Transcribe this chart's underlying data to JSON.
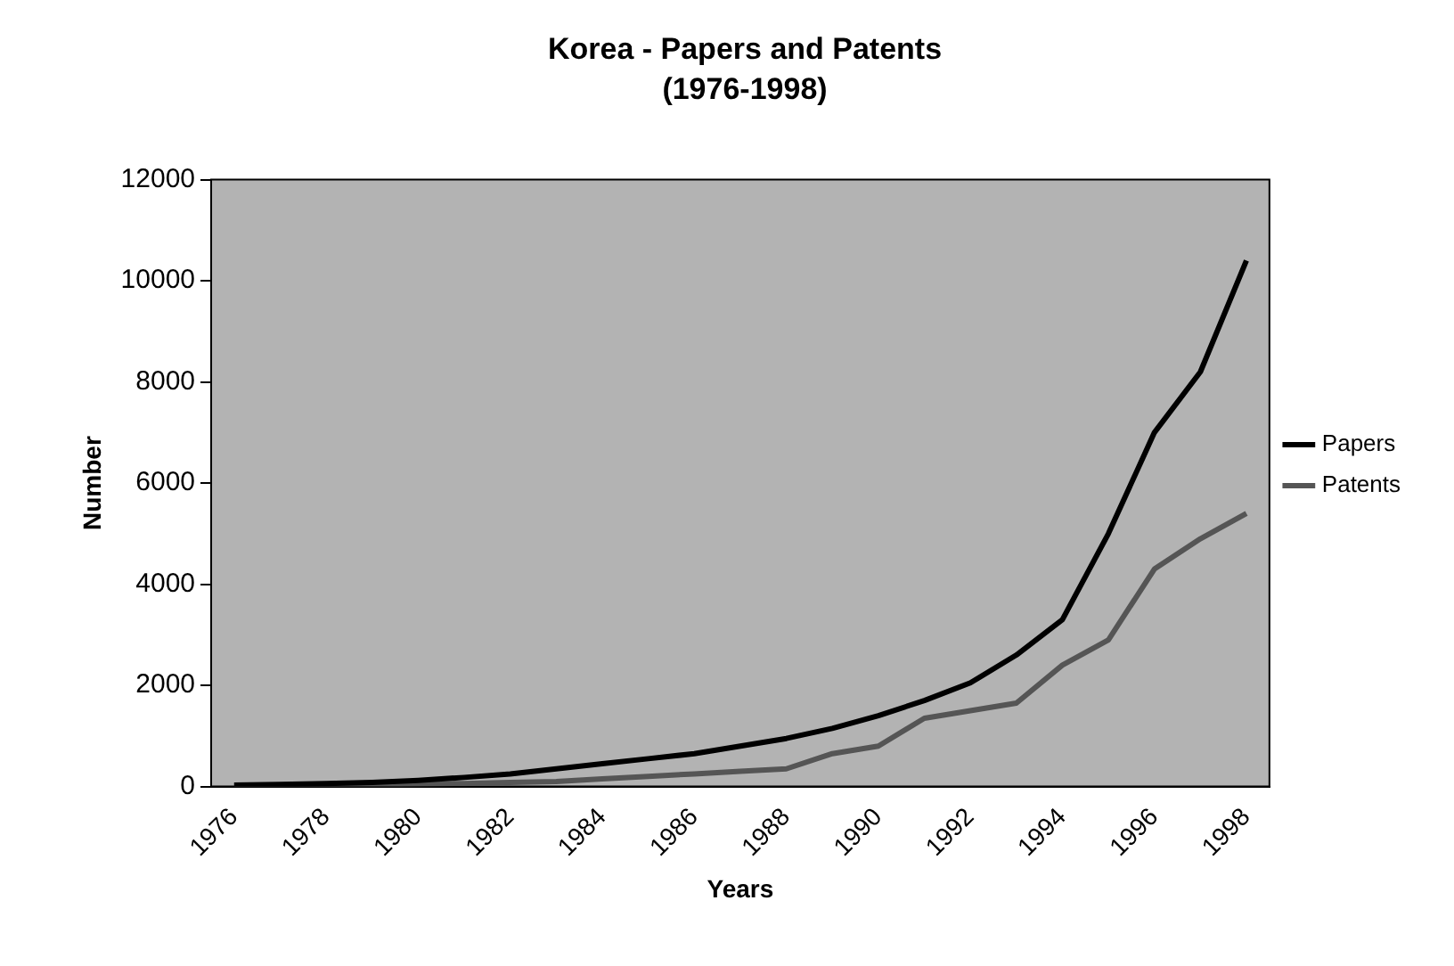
{
  "chart_data": {
    "type": "line",
    "title": "Korea - Papers and Patents",
    "subtitle": "(1976-1998)",
    "xlabel": "Years",
    "ylabel": "Number",
    "categories": [
      "1976",
      null,
      "1978",
      null,
      "1980",
      null,
      "1982",
      null,
      "1984",
      null,
      "1986",
      null,
      "1988",
      null,
      "1990",
      null,
      "1992",
      null,
      "1994",
      null,
      "1996",
      null,
      "1998"
    ],
    "series": [
      {
        "name": "Papers",
        "color": "#000000",
        "values": [
          30,
          40,
          60,
          80,
          120,
          180,
          250,
          350,
          450,
          550,
          650,
          800,
          950,
          1150,
          1400,
          1700,
          2050,
          2600,
          3300,
          5000,
          7000,
          8200,
          10400
        ]
      },
      {
        "name": "Patents",
        "color": "#555555",
        "values": [
          20,
          20,
          30,
          40,
          50,
          60,
          80,
          100,
          150,
          200,
          250,
          300,
          350,
          650,
          800,
          1350,
          1500,
          1650,
          2400,
          2900,
          4300,
          4900,
          5400
        ]
      }
    ],
    "ylim": [
      0,
      12000
    ],
    "yticks": [
      0,
      2000,
      4000,
      6000,
      8000,
      10000,
      12000
    ],
    "grid": false,
    "legend": "right",
    "marker": "none",
    "line_style": "solid"
  }
}
